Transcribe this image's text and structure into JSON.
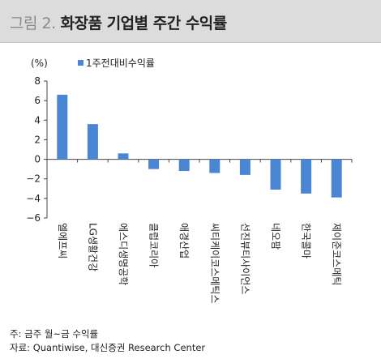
{
  "header": {
    "figure_label": "그림 2.",
    "title": "화장품 기업별 주간 수익률"
  },
  "chart_data": {
    "type": "bar",
    "ylabel": "(%)",
    "ylim": [
      -6,
      8
    ],
    "yticks": [
      8,
      6,
      4,
      2,
      0,
      -2,
      -4,
      -6
    ],
    "ytick_labels": [
      "8",
      "6",
      "4",
      "2",
      "0",
      "−2",
      "−4",
      "−6"
    ],
    "grid": false,
    "legend_position": "top-left",
    "categories": [
      "엘에프씨",
      "LG생활건강",
      "에스디생명공학",
      "클럽코리아",
      "애경산업",
      "씨티케이코스메틱스",
      "선진뷰티사이언스",
      "네오팜",
      "한국콜마",
      "제이준코스메틱"
    ],
    "series": [
      {
        "name": "1주전대비수익률",
        "color": "#4a86d4",
        "values": [
          6.6,
          3.6,
          0.6,
          -1.0,
          -1.2,
          -1.4,
          -1.6,
          -3.1,
          -3.5,
          -3.9
        ]
      }
    ]
  },
  "footnotes": {
    "note": "주: 금주 월~금 수익률",
    "source": "자료: Quantiwise, 대신증권 Research Center"
  }
}
